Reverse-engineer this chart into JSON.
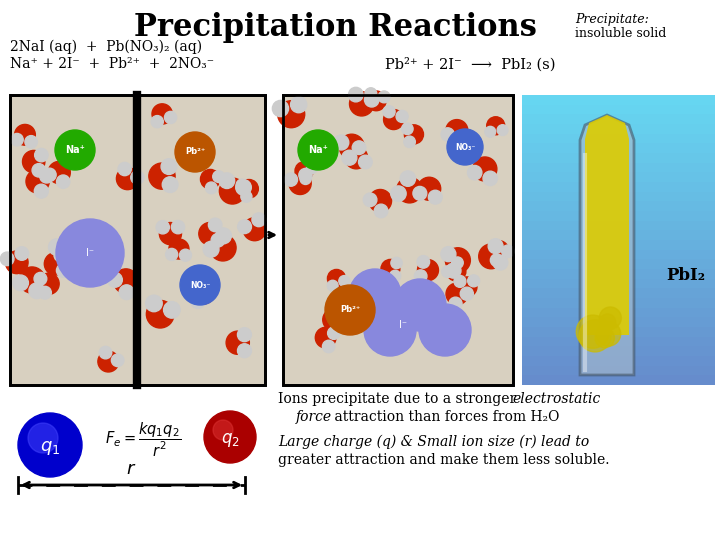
{
  "title": "Precipitation Reactions",
  "title_fontsize": 22,
  "bg_color": "#ffffff",
  "precipitate_label": "Precipitate:",
  "precipitate_sub": "insoluble solid",
  "reaction1": "2NaI (aq)  +  Pb(NO₃)₂ (aq)",
  "net_ionic_left": "Na⁺ + 2I⁻  +  Pb²⁺  +  2NO₃⁻",
  "net_ionic_right": "Pb²⁺ + 2I⁻  ⟶  PbI₂ (s)",
  "q1_color": "#0000cc",
  "q2_color": "#aa0000",
  "r_label": "r",
  "pbi2_label": "PbI₂",
  "force_eq": "$F_e = \\dfrac{kq_1q_2}{r^2}$"
}
